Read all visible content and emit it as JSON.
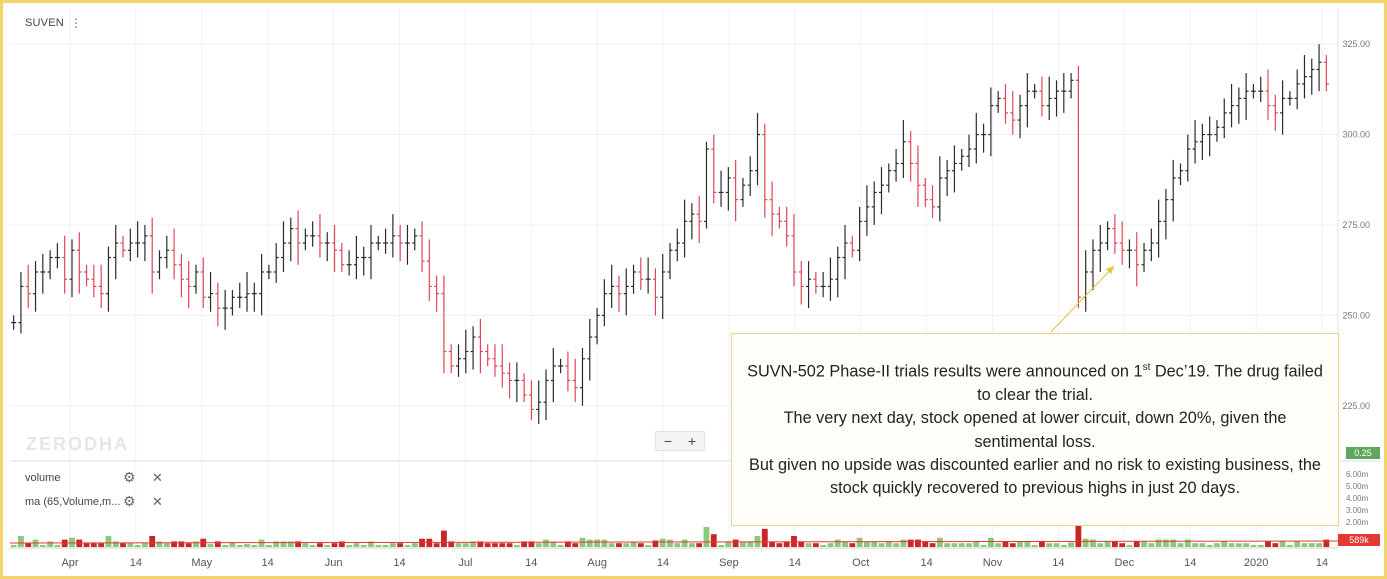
{
  "symbol": "SUVEN",
  "watermark": "ZERODHA",
  "zoom": {
    "minus": "−",
    "plus": "+"
  },
  "studies": [
    {
      "label": "volume"
    },
    {
      "label": "ma (65,Volume,m..."
    }
  ],
  "note": {
    "line1_pre": "SUVN-502 Phase-II trials results were announced on 1",
    "line1_sup": "st",
    "line1_post": " Dec’19. The drug failed to clear the trial.",
    "line2": "The very next day, stock opened at lower circuit, down 20%, given the sentimental loss.",
    "line3": "But given no upside was discounted earlier and no risk to existing business, the stock quickly recovered to previous highs in just 20 days."
  },
  "price_tag": "0.25",
  "volume_tag": "589k",
  "volume_axis": [
    "6.00m",
    "5.00m",
    "4.00m",
    "3.00m",
    "2.00m"
  ],
  "colors": {
    "up": "#2b2b2b",
    "down": "#e0455a",
    "vol_up": "#8cc97a",
    "vol_down": "#c62828",
    "frame": "#f5d36b",
    "ma": "#e53935"
  },
  "chart_data": {
    "type": "ohlc",
    "y_ticks": [
      325,
      300,
      275,
      250,
      225
    ],
    "ylim": [
      210,
      335
    ],
    "x_tick_labels": [
      "Apr",
      "14",
      "May",
      "14",
      "Jun",
      "14",
      "Jul",
      "14",
      "Aug",
      "14",
      "Sep",
      "14",
      "Oct",
      "14",
      "Nov",
      "14",
      "Dec",
      "14",
      "2020",
      "14"
    ],
    "closes": [
      248,
      258,
      256,
      262,
      262,
      266,
      266,
      260,
      268,
      262,
      260,
      258,
      256,
      266,
      270,
      268,
      270,
      270,
      272,
      262,
      266,
      268,
      264,
      260,
      258,
      262,
      255,
      256,
      252,
      252,
      255,
      255,
      256,
      256,
      262,
      262,
      266,
      270,
      274,
      270,
      272,
      272,
      270,
      270,
      268,
      264,
      264,
      266,
      266,
      270,
      270,
      270,
      272,
      270,
      270,
      272,
      265,
      258,
      256,
      240,
      236,
      238,
      240,
      244,
      240,
      238,
      236,
      234,
      232,
      232,
      228,
      224,
      226,
      232,
      236,
      236,
      232,
      230,
      238,
      244,
      250,
      256,
      258,
      256,
      258,
      262,
      260,
      260,
      255,
      262,
      268,
      270,
      276,
      278,
      276,
      296,
      284,
      284,
      288,
      282,
      286,
      290,
      300,
      282,
      278,
      276,
      272,
      262,
      258,
      260,
      258,
      258,
      260,
      266,
      270,
      268,
      276,
      280,
      284,
      286,
      290,
      292,
      298,
      292,
      286,
      282,
      280,
      288,
      290,
      292,
      294,
      296,
      300,
      300,
      308,
      310,
      306,
      304,
      308,
      312,
      312,
      308,
      310,
      312,
      312,
      315,
      255,
      262,
      268,
      270,
      274,
      270,
      268,
      268,
      264,
      268,
      270,
      276,
      282,
      288,
      290,
      296,
      298,
      300,
      300,
      302,
      306,
      308,
      310,
      312,
      312,
      312,
      308,
      306,
      310,
      310,
      314,
      316,
      318,
      320,
      314
    ]
  }
}
